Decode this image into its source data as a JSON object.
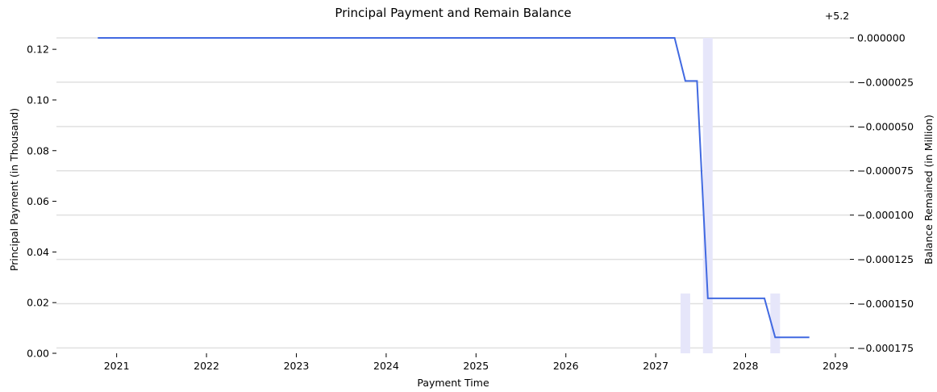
{
  "chart_data": {
    "type": "bar+line",
    "title": "Principal Payment and Remain Balance",
    "xlabel": "Payment Time",
    "ylabel_left": "Principal Payment (in Thousand)",
    "ylabel_right": "Balance Remained (in Million)",
    "right_offset_label": "+5.2",
    "x_ticks": [
      "2021",
      "2022",
      "2023",
      "2024",
      "2025",
      "2026",
      "2027",
      "2028",
      "2029"
    ],
    "x_range": [
      2020.33,
      2029.0
    ],
    "ylim_left": [
      0,
      0.1245
    ],
    "ylim_right": [
      -0.000178,
      0.0
    ],
    "y_ticks_left": [
      "0.00",
      "0.02",
      "0.04",
      "0.06",
      "0.08",
      "0.10",
      "0.12"
    ],
    "y_ticks_right": [
      "0.000000",
      "−0.000025",
      "−0.000050",
      "−0.000075",
      "−0.000100",
      "−0.000125",
      "−0.000150",
      "−0.000175"
    ],
    "grid": true,
    "bar_color": "#e6e6fa",
    "line_color": "#4169e1",
    "bars": {
      "name": "Principal Payment",
      "x": [
        2027.33,
        2027.58,
        2028.33
      ],
      "values": [
        0.0236,
        0.1245,
        0.0236
      ]
    },
    "line": {
      "name": "Balance Remained",
      "x": [
        2020.79,
        2027.21,
        2027.33,
        2027.46,
        2027.58,
        2028.21,
        2028.33,
        2028.71
      ],
      "values": [
        0.0,
        0.0,
        -2.43e-05,
        -2.43e-05,
        -0.000147,
        -0.000147,
        -0.000169,
        -0.000169
      ]
    }
  }
}
